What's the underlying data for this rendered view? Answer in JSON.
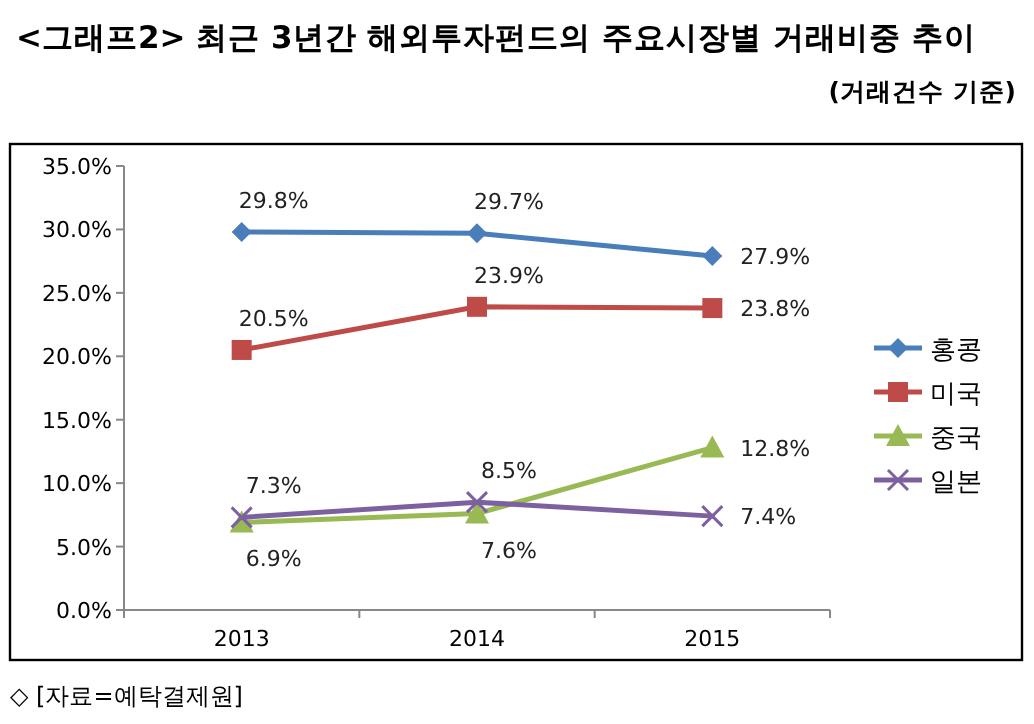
{
  "chart_data": {
    "type": "line",
    "title": "<그래프2> 최근 3년간 해외투자펀드의 주요시장별 거래비중 추이",
    "subtitle": "(거래건수 기준)",
    "annotations": [
      "◇ [자료=예탁결제원]"
    ],
    "categories": [
      "2013",
      "2014",
      "2015"
    ],
    "series": [
      {
        "name": "홍콩",
        "color": "#4a7ebb",
        "marker": "diamond",
        "values": [
          29.8,
          29.7,
          27.9
        ],
        "value_labels": [
          "29.8%",
          "29.7%",
          "27.9%"
        ]
      },
      {
        "name": "미국",
        "color": "#be4b48",
        "marker": "square",
        "values": [
          20.5,
          23.9,
          23.8
        ],
        "value_labels": [
          "20.5%",
          "23.9%",
          "23.8%"
        ]
      },
      {
        "name": "중국",
        "color": "#98b954",
        "marker": "triangle",
        "values": [
          6.9,
          7.6,
          12.8
        ],
        "value_labels": [
          "6.9%",
          "7.6%",
          "12.8%"
        ]
      },
      {
        "name": "일본",
        "color": "#7d60a0",
        "marker": "cross",
        "values": [
          7.3,
          8.5,
          7.4
        ],
        "value_labels": [
          "7.3%",
          "8.5%",
          "7.4%"
        ]
      }
    ],
    "ylim": [
      0,
      35
    ],
    "yticks": [
      {
        "value": 0,
        "label": "0.0%"
      },
      {
        "value": 5,
        "label": "5.0%"
      },
      {
        "value": 10,
        "label": "10.0%"
      },
      {
        "value": 15,
        "label": "15.0%"
      },
      {
        "value": 20,
        "label": "20.0%"
      },
      {
        "value": 25,
        "label": "25.0%"
      },
      {
        "value": 30,
        "label": "30.0%"
      },
      {
        "value": 35,
        "label": "35.0%"
      }
    ],
    "legend": "right",
    "line_style": "solid"
  }
}
